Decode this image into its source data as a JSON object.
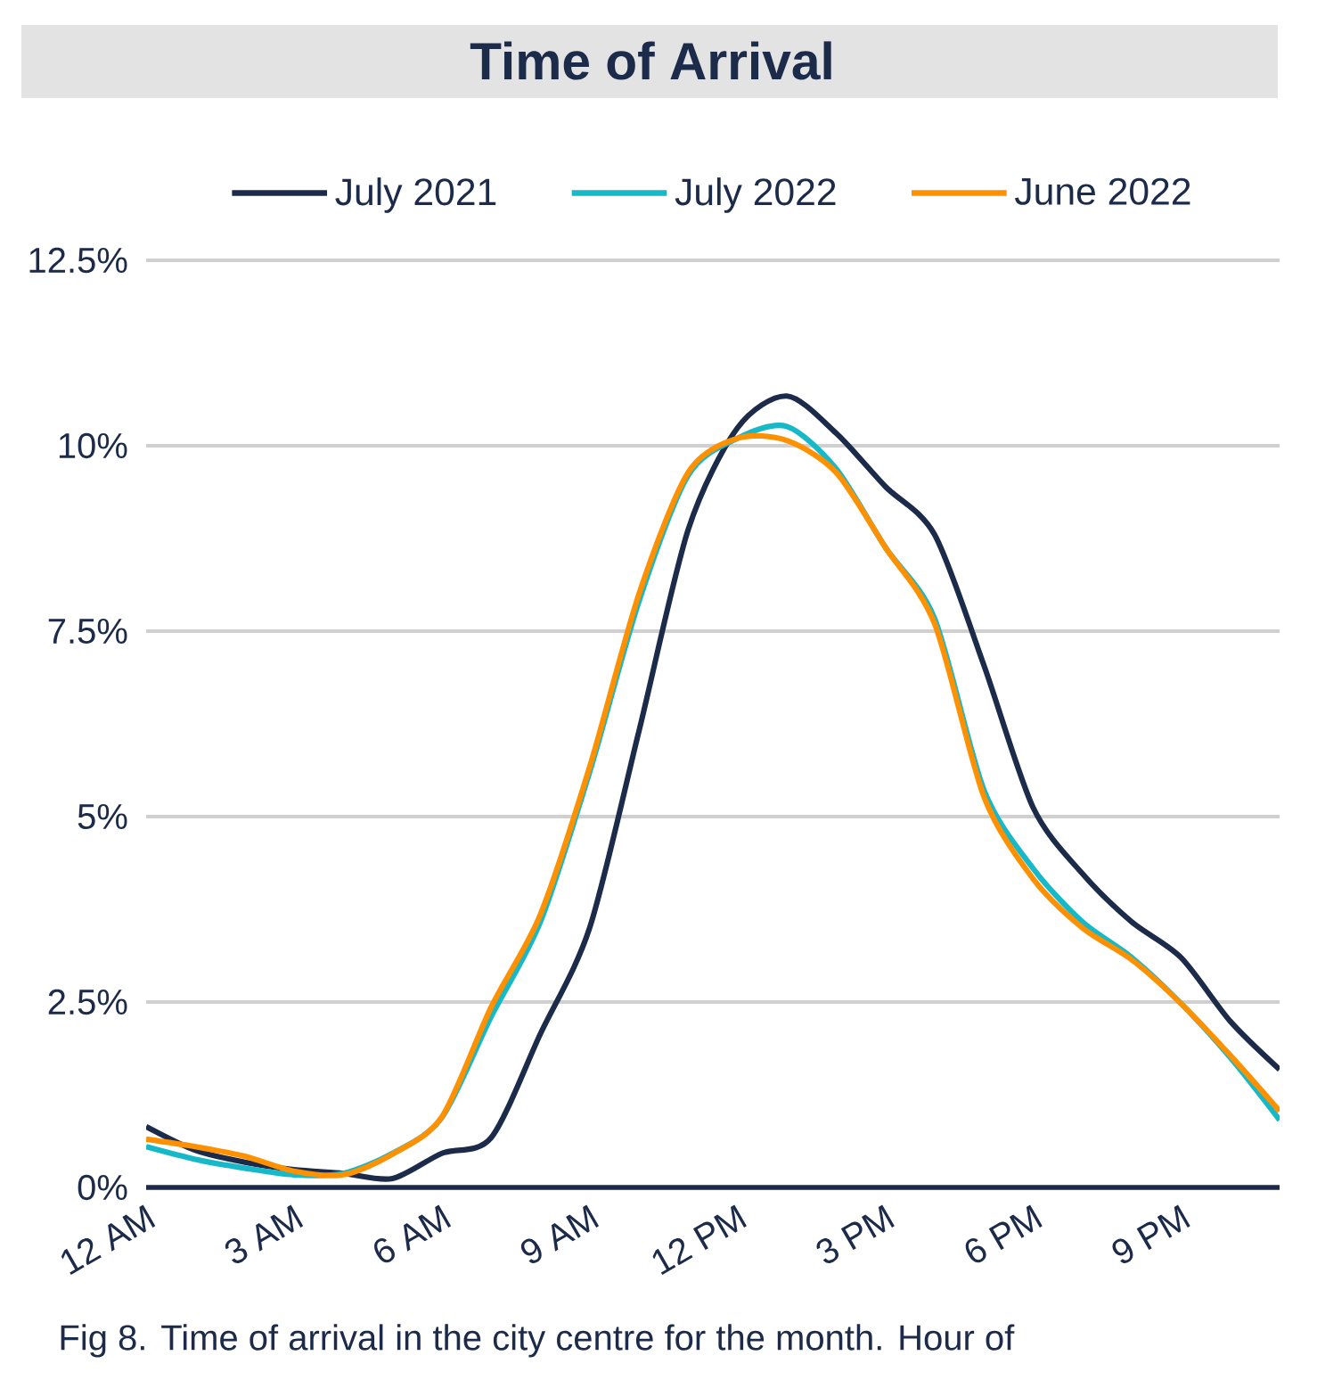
{
  "chart_data": {
    "type": "line",
    "title": "Time of Arrival",
    "categories": [
      "12 AM",
      null,
      null,
      "3 AM",
      null,
      null,
      "6 AM",
      null,
      null,
      "9 AM",
      null,
      null,
      "12 PM",
      null,
      null,
      "3 PM",
      null,
      null,
      "6 PM",
      null,
      null,
      "9 PM",
      null,
      null
    ],
    "series": [
      {
        "name": "July 2021",
        "color": "#1c2b4a",
        "values": [
          0.82,
          0.5,
          0.34,
          0.24,
          0.19,
          0.12,
          0.46,
          0.67,
          2.07,
          3.5,
          6.15,
          8.87,
          10.24,
          10.67,
          10.17,
          9.45,
          8.8,
          7.04,
          5.12,
          4.23,
          3.58,
          3.1,
          2.24,
          1.59
        ]
      },
      {
        "name": "July 2022",
        "color": "#17b8c8",
        "values": [
          0.55,
          0.38,
          0.26,
          0.17,
          0.19,
          0.46,
          0.94,
          2.3,
          3.58,
          5.6,
          7.9,
          9.6,
          10.1,
          10.26,
          9.69,
          8.63,
          7.67,
          5.36,
          4.3,
          3.58,
          3.1,
          2.48,
          1.75,
          0.91
        ]
      },
      {
        "name": "June 2022",
        "color": "#ff9000",
        "values": [
          0.65,
          0.55,
          0.42,
          0.22,
          0.17,
          0.45,
          0.95,
          2.43,
          3.68,
          5.67,
          8.0,
          9.64,
          10.1,
          10.07,
          9.64,
          8.63,
          7.6,
          5.27,
          4.16,
          3.5,
          3.07,
          2.48,
          1.78,
          1.03
        ]
      }
    ],
    "ylim": [
      0,
      12.5
    ],
    "yticks": [
      {
        "value": 0,
        "label": "0%"
      },
      {
        "value": 2.5,
        "label": "2.5%"
      },
      {
        "value": 5,
        "label": "5%"
      },
      {
        "value": 7.5,
        "label": "7.5%"
      },
      {
        "value": 10,
        "label": "10%"
      },
      {
        "value": 12.5,
        "label": "12.5%"
      }
    ],
    "grid": "y",
    "legend": "top",
    "marker": "none",
    "line_style": "solid",
    "annotations": [
      "Fig 8. Time of arrival in the city centre for the month. Hour of"
    ]
  }
}
